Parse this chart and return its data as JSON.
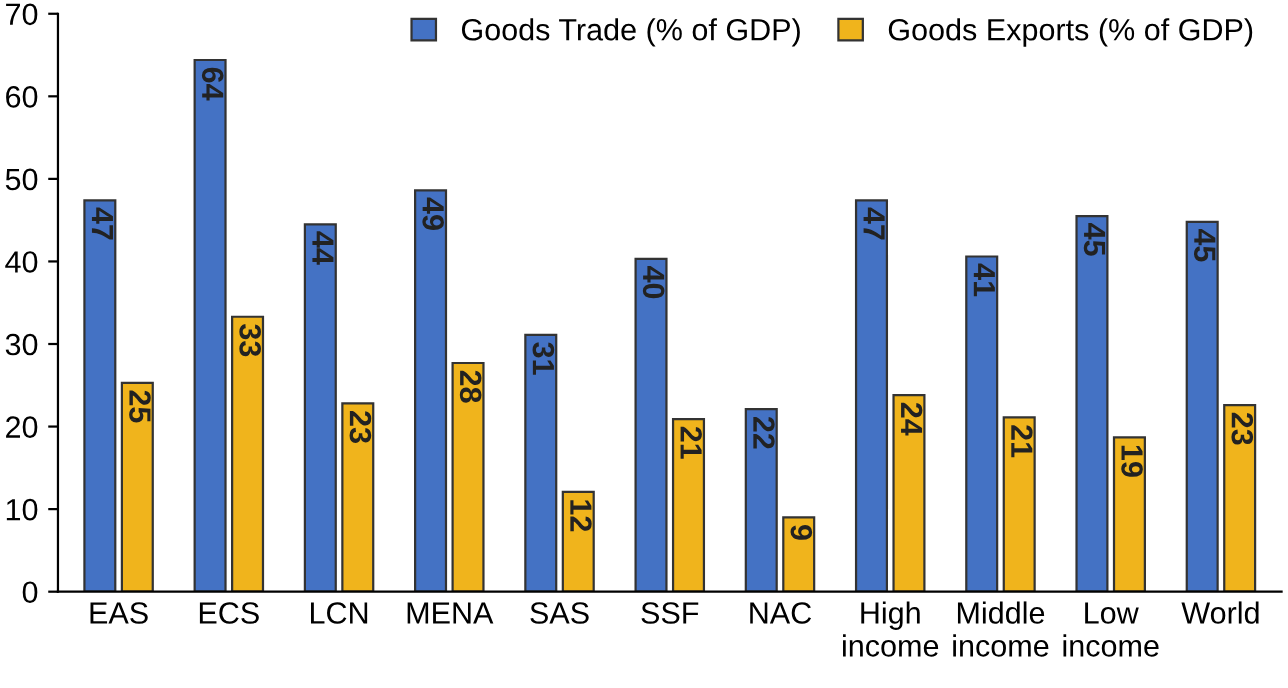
{
  "chart_data": {
    "type": "bar",
    "categories": [
      "EAS",
      "ECS",
      "LCN",
      "MENA",
      "SAS",
      "SSF",
      "NAC",
      "High\nincome",
      "Middle\nincome",
      "Low\nincome",
      "World"
    ],
    "series": [
      {
        "name": "Goods Trade (% of GDP)",
        "color": "#4472c4",
        "values": [
          47.4,
          64.4,
          44.5,
          48.6,
          31.1,
          40.3,
          22.1,
          47.4,
          40.6,
          45.5,
          44.8
        ],
        "value_labels": [
          "47",
          "64",
          "44",
          "49",
          "31",
          "40",
          "22",
          "47",
          "41",
          "45",
          "45"
        ]
      },
      {
        "name": "Goods Exports (% of GDP)",
        "color": "#f0b41c",
        "values": [
          25.3,
          33.3,
          22.8,
          27.7,
          12.1,
          20.9,
          9.0,
          23.8,
          21.1,
          18.7,
          22.6
        ],
        "value_labels": [
          "25",
          "33",
          "23",
          "28",
          "12",
          "21",
          "9",
          "24",
          "21",
          "19",
          "23"
        ]
      }
    ],
    "ylim": [
      0,
      70
    ],
    "yticks": [
      0,
      10,
      20,
      30,
      40,
      50,
      60,
      70
    ],
    "legend": "top right"
  }
}
